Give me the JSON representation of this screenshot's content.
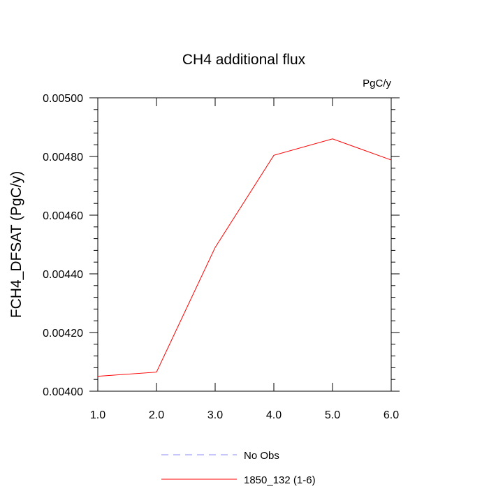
{
  "chart_data": {
    "type": "line",
    "title": "CH4 additional flux",
    "units": "PgC/y",
    "xlabel": "",
    "ylabel": "FCH4_DFSAT  (PgC/y)",
    "xlim": [
      1.0,
      6.0
    ],
    "ylim": [
      0.004,
      0.005
    ],
    "x_ticks": [
      1.0,
      2.0,
      3.0,
      4.0,
      5.0,
      6.0
    ],
    "x_tick_labels": [
      "1.0",
      "2.0",
      "3.0",
      "4.0",
      "5.0",
      "6.0"
    ],
    "y_ticks": [
      0.004,
      0.0042,
      0.0044,
      0.0046,
      0.0048,
      0.005
    ],
    "y_tick_labels": [
      "0.00400",
      "0.00420",
      "0.00440",
      "0.00460",
      "0.00480",
      "0.00500"
    ],
    "grid": false,
    "legend_position": "bottom-center",
    "series": [
      {
        "name": "No Obs",
        "color": "#8c8cf0",
        "dash": true,
        "x": [],
        "y": []
      },
      {
        "name": "1850_132 (1-6)",
        "color": "#ff0000",
        "dash": false,
        "x": [
          1.0,
          2.0,
          3.0,
          4.0,
          5.0,
          6.0
        ],
        "y": [
          0.004051,
          0.004065,
          0.00449,
          0.004804,
          0.00486,
          0.004788
        ]
      }
    ]
  }
}
